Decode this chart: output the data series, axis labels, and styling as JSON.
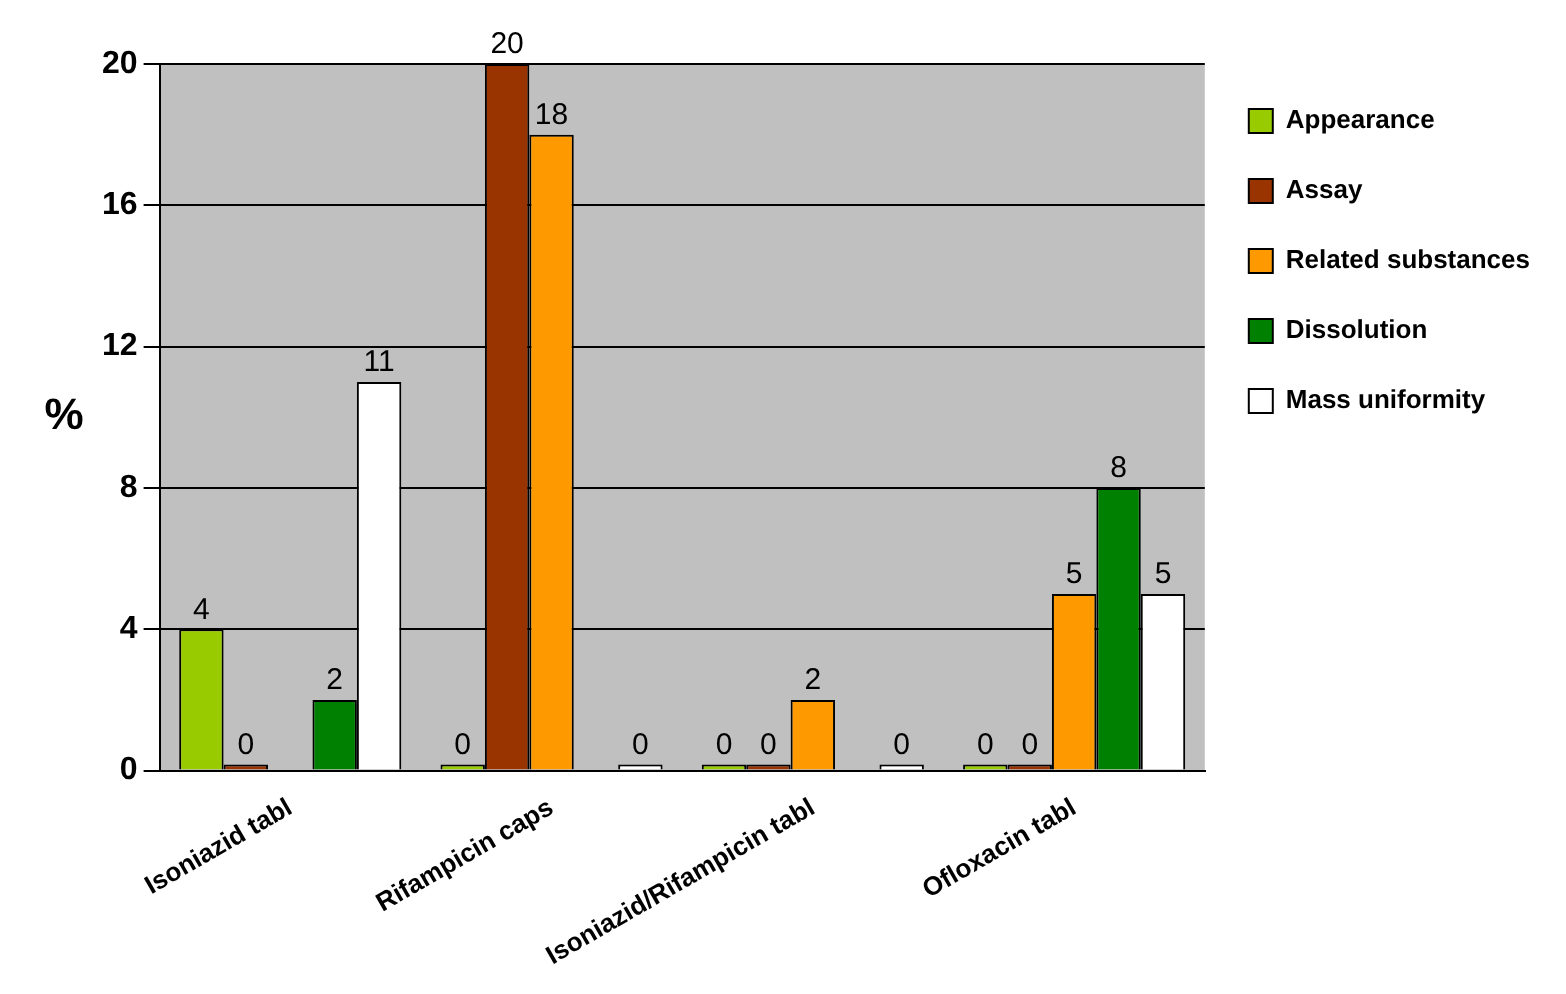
{
  "chart_data": {
    "type": "bar",
    "ylabel": "%",
    "categories": [
      "Isoniazid tabl",
      "Rifampicin caps",
      "Isoniazid/Rifampicin tabl",
      "Ofloxacin tabl"
    ],
    "series": [
      {
        "name": "Appearance",
        "color": "#99cc00",
        "values": [
          4,
          0,
          0,
          0
        ]
      },
      {
        "name": "Assay",
        "color": "#993300",
        "values": [
          0,
          20,
          0,
          0
        ]
      },
      {
        "name": "Related substances",
        "color": "#ff9900",
        "values": [
          null,
          18,
          2,
          5
        ]
      },
      {
        "name": "Dissolution",
        "color": "#008000",
        "values": [
          2,
          null,
          null,
          8
        ]
      },
      {
        "name": "Mass uniformity",
        "color": "#ffffff",
        "values": [
          11,
          0,
          0,
          5
        ]
      }
    ],
    "ylim": [
      0,
      20
    ],
    "yticks": [
      0,
      4,
      8,
      12,
      16,
      20
    ],
    "grid": "y",
    "legend": "right",
    "data_labels": true
  }
}
